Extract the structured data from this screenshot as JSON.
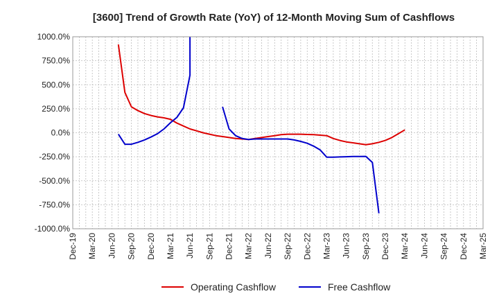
{
  "chart_data": {
    "type": "line",
    "title": "[3600]  Trend of Growth Rate (YoY) of 12-Month Moving Sum of Cashflows",
    "xlabel": "",
    "ylabel": "",
    "ylim": [
      -1000,
      1000
    ],
    "y_ticks": [
      "1000.0%",
      "750.0%",
      "500.0%",
      "250.0%",
      "0.0%",
      "-250.0%",
      "-500.0%",
      "-750.0%",
      "-1000.0%"
    ],
    "y_tick_values": [
      1000,
      750,
      500,
      250,
      0,
      -250,
      -500,
      -750,
      -1000
    ],
    "x_ticks": [
      "Dec-19",
      "Mar-20",
      "Jun-20",
      "Sep-20",
      "Dec-20",
      "Mar-21",
      "Jun-21",
      "Sep-21",
      "Dec-21",
      "Mar-22",
      "Jun-22",
      "Sep-22",
      "Dec-22",
      "Mar-23",
      "Jun-23",
      "Sep-23",
      "Dec-23",
      "Mar-24",
      "Jun-24",
      "Sep-24",
      "Dec-24",
      "Mar-25"
    ],
    "grid": true,
    "legend_position": "bottom",
    "series": [
      {
        "name": "Operating Cashflow",
        "color": "#dd0000",
        "points": [
          [
            "Jul-20",
            920
          ],
          [
            "Aug-20",
            420
          ],
          [
            "Sep-20",
            270
          ],
          [
            "Oct-20",
            230
          ],
          [
            "Nov-20",
            200
          ],
          [
            "Dec-20",
            180
          ],
          [
            "Jan-21",
            165
          ],
          [
            "Feb-21",
            155
          ],
          [
            "Mar-21",
            140
          ],
          [
            "Apr-21",
            100
          ],
          [
            "May-21",
            70
          ],
          [
            "Jun-21",
            40
          ],
          [
            "Jul-21",
            20
          ],
          [
            "Aug-21",
            0
          ],
          [
            "Sep-21",
            -15
          ],
          [
            "Oct-21",
            -30
          ],
          [
            "Nov-21",
            -40
          ],
          [
            "Dec-21",
            -50
          ],
          [
            "Jan-22",
            -60
          ],
          [
            "Feb-22",
            -65
          ],
          [
            "Mar-22",
            -70
          ],
          [
            "Apr-22",
            -60
          ],
          [
            "May-22",
            -50
          ],
          [
            "Jun-22",
            -40
          ],
          [
            "Jul-22",
            -30
          ],
          [
            "Aug-22",
            -20
          ],
          [
            "Sep-22",
            -15
          ],
          [
            "Oct-22",
            -15
          ],
          [
            "Nov-22",
            -15
          ],
          [
            "Dec-22",
            -18
          ],
          [
            "Jan-23",
            -20
          ],
          [
            "Feb-23",
            -25
          ],
          [
            "Mar-23",
            -30
          ],
          [
            "Apr-23",
            -60
          ],
          [
            "May-23",
            -80
          ],
          [
            "Jun-23",
            -95
          ],
          [
            "Jul-23",
            -105
          ],
          [
            "Aug-23",
            -115
          ],
          [
            "Sep-23",
            -125
          ],
          [
            "Oct-23",
            -115
          ],
          [
            "Nov-23",
            -100
          ],
          [
            "Dec-23",
            -80
          ],
          [
            "Jan-24",
            -50
          ],
          [
            "Feb-24",
            -10
          ],
          [
            "Mar-24",
            30
          ]
        ]
      },
      {
        "name": "Free Cashflow",
        "color": "#0000cc",
        "segments": [
          [
            [
              "Jul-20",
              -15
            ],
            [
              "Aug-20",
              -120
            ],
            [
              "Sep-20",
              -120
            ],
            [
              "Oct-20",
              -100
            ],
            [
              "Nov-20",
              -75
            ],
            [
              "Dec-20",
              -45
            ],
            [
              "Jan-21",
              -10
            ],
            [
              "Feb-21",
              40
            ],
            [
              "Mar-21",
              105
            ],
            [
              "Apr-21",
              160
            ],
            [
              "May-21",
              260
            ],
            [
              "Jun-21",
              600
            ],
            [
              "Jun-21",
              1000
            ]
          ],
          [
            [
              "Nov-21",
              270
            ],
            [
              "Dec-21",
              40
            ],
            [
              "Jan-22",
              -30
            ],
            [
              "Feb-22",
              -60
            ],
            [
              "Mar-22",
              -70
            ],
            [
              "Apr-22",
              -65
            ],
            [
              "May-22",
              -65
            ],
            [
              "Jun-22",
              -65
            ],
            [
              "Jul-22",
              -65
            ],
            [
              "Aug-22",
              -65
            ],
            [
              "Sep-22",
              -65
            ],
            [
              "Oct-22",
              -75
            ],
            [
              "Nov-22",
              -90
            ],
            [
              "Dec-22",
              -110
            ],
            [
              "Jan-23",
              -140
            ],
            [
              "Feb-23",
              -180
            ],
            [
              "Mar-23",
              -255
            ],
            [
              "Apr-23",
              -255
            ],
            [
              "May-23",
              -252
            ],
            [
              "Jun-23",
              -250
            ],
            [
              "Jul-23",
              -248
            ],
            [
              "Aug-23",
              -247
            ],
            [
              "Sep-23",
              -246
            ],
            [
              "Oct-23",
              -310
            ],
            [
              "Nov-23",
              -840
            ]
          ]
        ]
      }
    ]
  }
}
